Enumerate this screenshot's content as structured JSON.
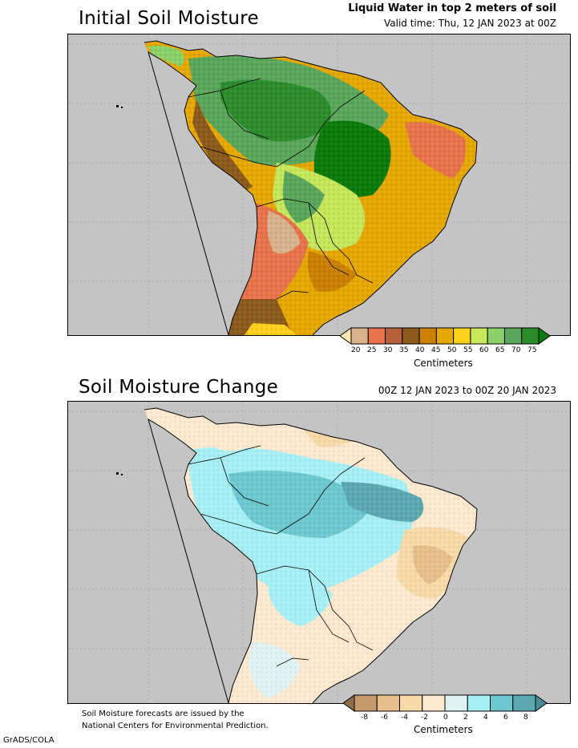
{
  "panel1": {
    "title": "Initial Soil Moisture",
    "header_bold": "Liquid Water in top 2 meters of soil",
    "valid_time": "Valid time: Thu, 12 JAN 2023 at 00Z",
    "colorbar": {
      "labels": [
        "20",
        "25",
        "30",
        "35",
        "40",
        "45",
        "50",
        "55",
        "60",
        "65",
        "70",
        "75"
      ],
      "colors": [
        "#ffe6b3",
        "#d9b38c",
        "#e8734a",
        "#b85f3c",
        "#8c5a1a",
        "#cc8000",
        "#e6a800",
        "#ffd11a",
        "#c6e85a",
        "#8ad16a",
        "#5aa65a",
        "#2b8c2b",
        "#0a7a0a"
      ],
      "units": "Centimeters"
    }
  },
  "panel2": {
    "title": "Soil Moisture Change",
    "period": "00Z 12 JAN 2023 to 00Z 20 JAN 2023",
    "colorbar": {
      "labels": [
        "-8",
        "-6",
        "-4",
        "-2",
        "0",
        "2",
        "4",
        "6",
        "8"
      ],
      "colors": [
        "#8c6f4a",
        "#c49a6c",
        "#e8bf8c",
        "#f8d9a8",
        "#fde9cf",
        "#e0f2f2",
        "#a6f0f5",
        "#6cc8d0",
        "#5aa8b0",
        "#4a8c98"
      ],
      "units": "Centimeters"
    }
  },
  "footer": {
    "note_line1": "Soil Moisture forecasts are issued by the",
    "note_line2": "National Centers for Environmental Prediction.",
    "credit": "GrADS/COLA"
  }
}
